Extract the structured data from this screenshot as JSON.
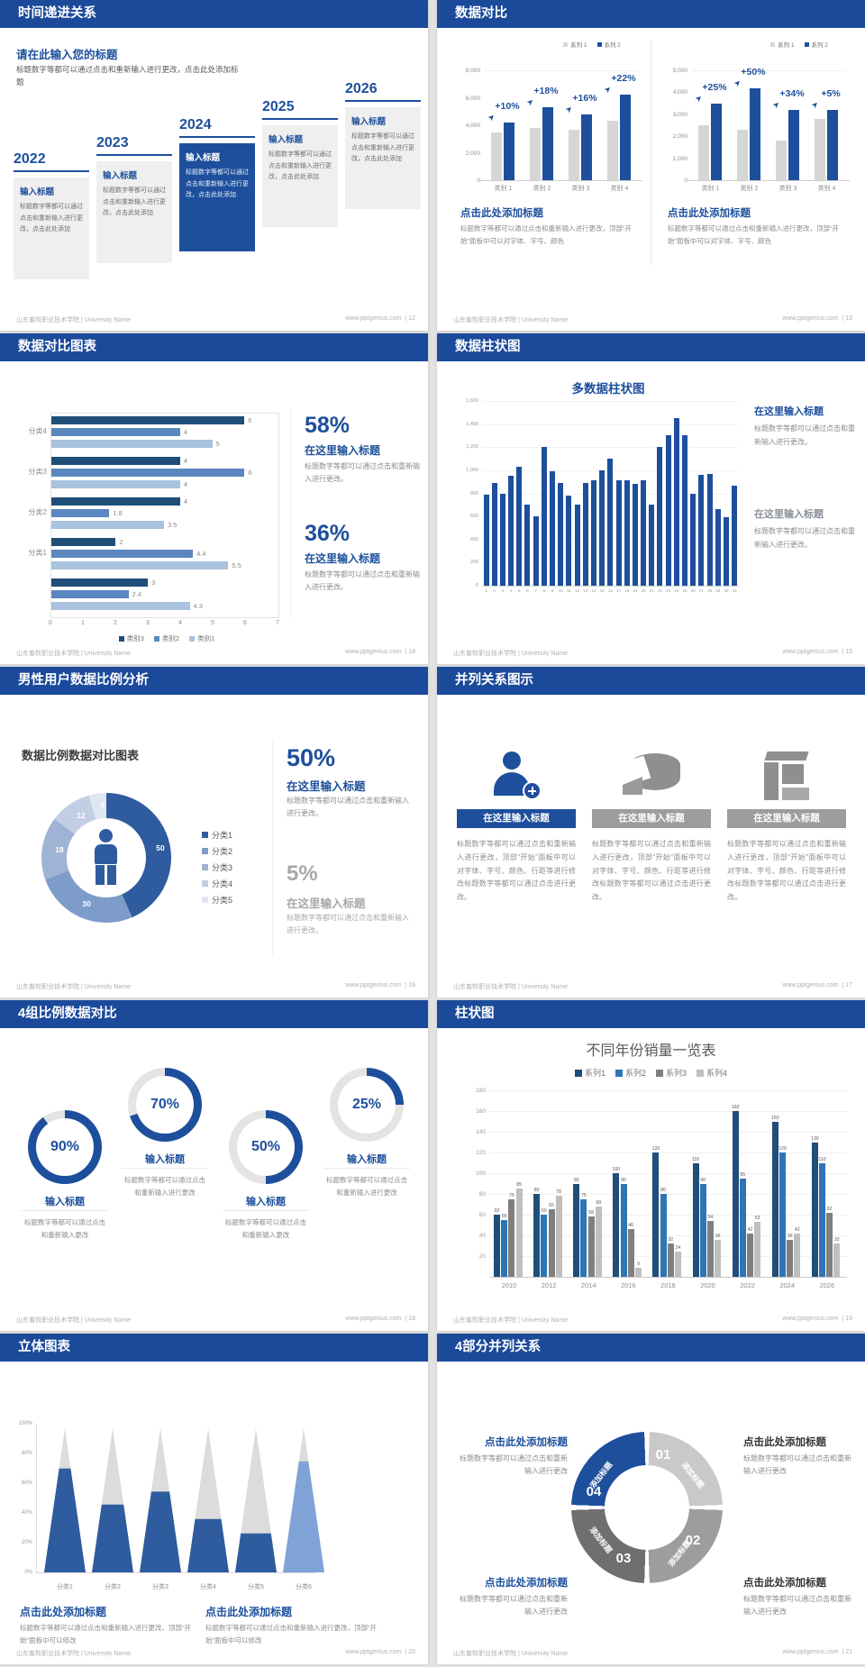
{
  "global": {
    "footer_left": "山东畜牧职业技术学院 | University Name",
    "footer_site": "www.pptgenius.com",
    "accent": "#1d4f9c"
  },
  "slides": [
    {
      "type": "timeline",
      "title": "时间递进关系",
      "page": "12",
      "intro_title": "请在此输入您的标题",
      "intro_body": "标题数字等都可以通过点击和重新输入进行更改，点击此处添加标题",
      "item_title": "输入标题",
      "item_body": "标题数字等都可以通过点击和重新输入进行更改，点击此处添加",
      "years": [
        "2022",
        "2023",
        "2024",
        "2025",
        "2026"
      ],
      "highlight_index": 2
    },
    {
      "type": "dual_bars",
      "title": "数据对比",
      "page": "13",
      "charts": [
        {
          "legend": [
            {
              "label": "系列 1",
              "color": "#d6d6d6"
            },
            {
              "label": "系列 2",
              "color": "#1d4f9c"
            }
          ],
          "ymax": 8000,
          "yticks": [
            "8,000",
            "6,000",
            "4,000",
            "2,000",
            "0"
          ],
          "categories": [
            "类别 1",
            "类别 2",
            "类别 3",
            "类别 4"
          ],
          "series": [
            {
              "name": "系列 1",
              "values": [
                3500,
                3800,
                3700,
                4300
              ]
            },
            {
              "name": "系列 2",
              "values": [
                4200,
                5300,
                4800,
                6200
              ]
            }
          ],
          "pct_labels": [
            "+10%",
            "+18%",
            "+16%",
            "+22%"
          ],
          "heading": "点击此处添加标题",
          "body": "标题数字等都可以通过点击和重新输入进行更改，顶部“开始”面板中可以对字体、字号、颜色"
        },
        {
          "legend": [
            {
              "label": "系列 1",
              "color": "#d6d6d6"
            },
            {
              "label": "系列 2",
              "color": "#1d4f9c"
            }
          ],
          "ymax": 5000,
          "yticks": [
            "5,000",
            "4,000",
            "3,000",
            "2,000",
            "1,000",
            "0"
          ],
          "categories": [
            "类别 1",
            "类别 2",
            "类别 3",
            "类别 4"
          ],
          "series": [
            {
              "name": "系列 1",
              "values": [
                2500,
                2300,
                1800,
                2800
              ]
            },
            {
              "name": "系列 2",
              "values": [
                3500,
                4200,
                3200,
                3200
              ]
            }
          ],
          "pct_labels": [
            "+25%",
            "+50%",
            "+34%",
            "+5%"
          ],
          "heading": "点击此处添加标题",
          "body": "标题数字等都可以通过点击和重新输入进行更改，顶部“开始”面板中可以对字体、字号、颜色"
        }
      ]
    },
    {
      "type": "hbar",
      "title": "数据对比图表",
      "page": "14",
      "chart_data": {
        "type": "bar",
        "orientation": "horizontal",
        "xlim": [
          0,
          7
        ],
        "xticks": [
          "0",
          "1",
          "2",
          "3",
          "4",
          "5",
          "6",
          "7"
        ],
        "groups": [
          {
            "label": "分类4",
            "values": [
              6,
              4,
              5
            ]
          },
          {
            "label": "分类3",
            "values": [
              4,
              6,
              4
            ]
          },
          {
            "label": "分类2",
            "values": [
              4,
              1.8,
              3.5
            ]
          },
          {
            "label": "分类1",
            "values": [
              2,
              4.4,
              5.5
            ]
          },
          {
            "label": "",
            "values": [
              3,
              2.4,
              4.3
            ]
          }
        ],
        "legend": [
          {
            "label": "类别3",
            "color": "#1f4e79"
          },
          {
            "label": "类别2",
            "color": "#5b87c0"
          },
          {
            "label": "类别1",
            "color": "#a9c2de"
          }
        ]
      },
      "stats": [
        {
          "pct": "58%",
          "heading": "在这里输入标题",
          "body": "标题数字等都可以通过点击和重新输入进行更改。"
        },
        {
          "pct": "36%",
          "heading": "在这里输入标题",
          "body": "标题数字等都可以通过点击和重新输入进行更改。"
        }
      ]
    },
    {
      "type": "multibar",
      "title": "数据柱状图",
      "page": "15",
      "chart_data": {
        "type": "bar",
        "title": "多数据柱状图",
        "ylim": [
          0,
          1600
        ],
        "yticks": [
          "1,600",
          "1,400",
          "1,200",
          "1,000",
          "800",
          "600",
          "400",
          "200",
          "0"
        ],
        "xticks": [
          "1",
          "2",
          "3",
          "4",
          "5",
          "6",
          "7",
          "8",
          "9",
          "10",
          "11",
          "12",
          "13",
          "14",
          "15",
          "16",
          "17",
          "18",
          "19",
          "20",
          "21",
          "22",
          "23",
          "24",
          "25",
          "26",
          "27",
          "28",
          "29",
          "30",
          "31"
        ],
        "values": [
          790,
          890,
          800,
          950,
          1030,
          700,
          600,
          1200,
          990,
          890,
          780,
          700,
          890,
          910,
          1000,
          1100,
          910,
          910,
          880,
          910,
          700,
          1200,
          1300,
          1450,
          1300,
          800,
          960,
          970,
          660,
          590,
          870
        ]
      },
      "notes": [
        {
          "heading": "在这里输入标题",
          "body": "标题数字等都可以通过点击和重新输入进行更改。",
          "muted": false
        },
        {
          "heading": "在这里输入标题",
          "body": "标题数字等都可以通过点击和重新输入进行更改。",
          "muted": true
        }
      ]
    },
    {
      "type": "donut",
      "title": "男性用户数据比例分析",
      "page": "16",
      "chart_heading": "数据比例数据对比图表",
      "chart_data": {
        "type": "pie",
        "slices": [
          {
            "label": "分类1",
            "value": 50,
            "color": "#2e5c9e"
          },
          {
            "label": "分类2",
            "value": 30,
            "color": "#7e9cc9"
          },
          {
            "label": "分类3",
            "value": 18,
            "color": "#9fb3d4"
          },
          {
            "label": "分类4",
            "value": 12,
            "color": "#c2cee3"
          },
          {
            "label": "分类5",
            "value": 5,
            "color": "#e0e6f1"
          }
        ]
      },
      "stats": [
        {
          "pct": "50%",
          "heading": "在这里输入标题",
          "body": "标题数字等都可以通过点击和重新输入进行更改。",
          "muted": false
        },
        {
          "pct": "5%",
          "heading": "在这里输入标题",
          "body": "标题数字等都可以通过点击和重新输入进行更改。",
          "muted": true
        }
      ]
    },
    {
      "type": "parallel",
      "title": "并列关系图示",
      "page": "17",
      "columns": [
        {
          "icon": "person-plus-icon",
          "heading": "在这里输入标题",
          "accent": true,
          "body": "标题数字等都可以通过点击和重新输入进行更改，顶部“开始”面板中可以对字体、字号、颜色、行距等进行修改标题数字等都可以通过点击进行更改。"
        },
        {
          "icon": "pie-wedge-icon",
          "heading": "在这里输入标题",
          "accent": false,
          "body": "标题数字等都可以通过点击和重新输入进行更改，顶部“开始”面板中可以对字体、字号、颜色、行距等进行修改标题数字等都可以通过点击进行更改。"
        },
        {
          "icon": "building-icon",
          "heading": "在这里输入标题",
          "accent": false,
          "body": "标题数字等都可以通过点击和重新输入进行更改，顶部“开始”面板中可以对字体、字号、颜色、行距等进行修改标题数字等都可以通过点击进行更改。"
        }
      ]
    },
    {
      "type": "rings",
      "title": "4组比例数据对比",
      "page": "18",
      "rings": [
        {
          "pct": 90,
          "label": "90%",
          "heading": "输入标题",
          "body": "标题数字等都可以通过点击和重新输入更改"
        },
        {
          "pct": 70,
          "label": "70%",
          "heading": "输入标题",
          "body": "标题数字等都可以通过点击和重新输入进行更改"
        },
        {
          "pct": 50,
          "label": "50%",
          "heading": "输入标题",
          "body": "标题数字等都可以通过点击和重新输入更改"
        },
        {
          "pct": 25,
          "label": "25%",
          "heading": "输入标题",
          "body": "标题数字等都可以通过点击和重新输入进行更改"
        }
      ]
    },
    {
      "type": "grouped_bar",
      "title": "柱状图",
      "page": "19",
      "chart_data": {
        "type": "bar",
        "title": "不同年份销量一览表",
        "categories": [
          "2010",
          "2012",
          "2014",
          "2016",
          "2018",
          "2020",
          "2022",
          "2024",
          "2026"
        ],
        "series": [
          {
            "name": "系列1",
            "color": "#1f4e79",
            "values": [
              60,
              80,
              90,
              100,
              120,
              110,
              160,
              150,
              130
            ]
          },
          {
            "name": "系列2",
            "color": "#2e75b6",
            "values": [
              55,
              60,
              75,
              90,
              80,
              90,
              95,
              120,
              110
            ]
          },
          {
            "name": "系列3",
            "color": "#7f7f7f",
            "values": [
              75,
              65,
              58,
              46,
              32,
              54,
              42,
              36,
              62
            ]
          },
          {
            "name": "系列4",
            "color": "#bfbfbf",
            "values": [
              85,
              78,
              68,
              9,
              24,
              36,
              53,
              42,
              32
            ]
          }
        ],
        "ylim": [
          0,
          180
        ],
        "yticks": [
          20,
          40,
          60,
          80,
          100,
          120,
          140,
          160,
          180
        ],
        "legend_position": "top"
      }
    },
    {
      "type": "cones",
      "title": "立体图表",
      "page": "20",
      "chart_data": {
        "type": "bar",
        "style": "cone",
        "categories": [
          "分类1",
          "分类2",
          "分类3",
          "分类4",
          "分类5",
          "分类6"
        ],
        "values_pct": [
          72,
          47,
          56,
          37,
          27,
          77
        ],
        "yticks": [
          "0%",
          "20%",
          "40%",
          "60%",
          "80%",
          "100%"
        ]
      },
      "notes": [
        {
          "heading": "点击此处添加标题",
          "body": "标题数字等都可以通过点击和重新输入进行更改，顶部“开始”面板中可以修改"
        },
        {
          "heading": "点击此处添加标题",
          "body": "标题数字等都可以通过点击和重新输入进行更改，顶部“开始”面板中可以修改"
        }
      ]
    },
    {
      "type": "cycle",
      "title": "4部分并列关系",
      "page": "21",
      "segments": [
        {
          "num": "01",
          "label": "添加标题",
          "color": "#c9c9c9"
        },
        {
          "num": "02",
          "label": "添加标题",
          "color": "#9d9d9d"
        },
        {
          "num": "03",
          "label": "添加标题",
          "color": "#6f6f6f"
        },
        {
          "num": "04",
          "label": "添加标题",
          "color": "#1d4f9c"
        }
      ],
      "notes": [
        {
          "heading": "点击此处添加标题",
          "body": "标题数字等都可以通过点击和重新输入进行更改",
          "accent": true,
          "pos": "tl"
        },
        {
          "heading": "点击此处添加标题",
          "body": "标题数字等都可以通过点击和重新输入进行更改",
          "accent": false,
          "pos": "tr"
        },
        {
          "heading": "点击此处添加标题",
          "body": "标题数字等都可以通过点击和重新输入进行更改",
          "accent": true,
          "pos": "bl"
        },
        {
          "heading": "点击此处添加标题",
          "body": "标题数字等都可以通过点击和重新输入进行更改",
          "accent": false,
          "pos": "br"
        }
      ]
    }
  ]
}
